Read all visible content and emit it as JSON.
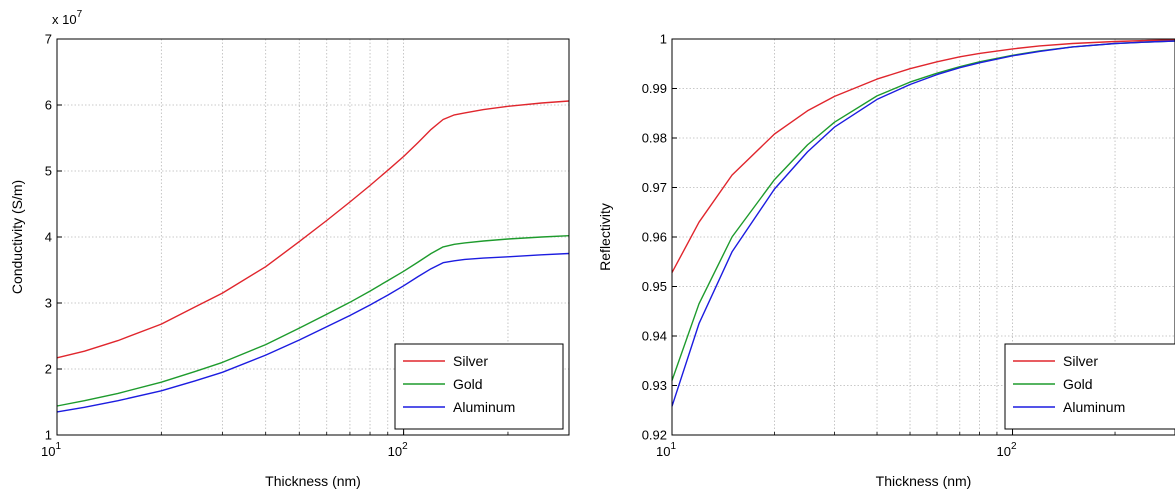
{
  "chart_data": [
    {
      "type": "line",
      "title": "",
      "xlabel": "Thickness (nm)",
      "ylabel": "Conductivity (S/m)",
      "y_multiplier_label": "x 10",
      "y_multiplier_exponent": "7",
      "xscale": "log",
      "xlim": [
        10,
        300
      ],
      "ylim": [
        1,
        7
      ],
      "x_ticks": [
        {
          "value": 10,
          "base": "10",
          "exp": "1"
        },
        {
          "value": 100,
          "base": "10",
          "exp": "2"
        }
      ],
      "y_ticks": [
        1,
        2,
        3,
        4,
        5,
        6,
        7
      ],
      "grid": true,
      "legend_position": "bottom-right",
      "x": [
        10,
        12,
        15,
        20,
        25,
        30,
        40,
        50,
        60,
        70,
        80,
        90,
        100,
        110,
        120,
        130,
        140,
        150,
        170,
        200,
        250,
        300
      ],
      "series": [
        {
          "name": "Silver",
          "color": "#e0262d",
          "values": [
            2.17,
            2.27,
            2.43,
            2.68,
            2.94,
            3.15,
            3.55,
            3.93,
            4.25,
            4.53,
            4.78,
            5.01,
            5.22,
            5.43,
            5.63,
            5.78,
            5.85,
            5.88,
            5.93,
            5.98,
            6.03,
            6.06
          ]
        },
        {
          "name": "Gold",
          "color": "#1e9b2d",
          "values": [
            1.44,
            1.52,
            1.63,
            1.8,
            1.96,
            2.1,
            2.37,
            2.62,
            2.83,
            3.01,
            3.18,
            3.34,
            3.48,
            3.62,
            3.75,
            3.85,
            3.89,
            3.91,
            3.94,
            3.97,
            4.0,
            4.02
          ]
        },
        {
          "name": "Aluminum",
          "color": "#1c1ce0",
          "values": [
            1.35,
            1.42,
            1.52,
            1.67,
            1.82,
            1.95,
            2.21,
            2.44,
            2.64,
            2.81,
            2.97,
            3.12,
            3.26,
            3.4,
            3.52,
            3.61,
            3.64,
            3.66,
            3.68,
            3.7,
            3.73,
            3.75
          ]
        }
      ]
    },
    {
      "type": "line",
      "title": "",
      "xlabel": "Thickness (nm)",
      "ylabel": "Reflectivity",
      "xscale": "log",
      "xlim": [
        10,
        300
      ],
      "ylim": [
        0.92,
        1
      ],
      "x_ticks": [
        {
          "value": 10,
          "base": "10",
          "exp": "1"
        },
        {
          "value": 100,
          "base": "10",
          "exp": "2"
        }
      ],
      "y_ticks": [
        "0.92",
        "0.93",
        "0.94",
        "0.95",
        "0.96",
        "0.97",
        "0.98",
        "0.99",
        "1"
      ],
      "grid": true,
      "legend_position": "bottom-right",
      "x": [
        10,
        12,
        15,
        20,
        25,
        30,
        40,
        50,
        60,
        70,
        80,
        100,
        120,
        150,
        200,
        250,
        300
      ],
      "series": [
        {
          "name": "Silver",
          "color": "#e0262d",
          "values": [
            0.9528,
            0.963,
            0.9725,
            0.9808,
            0.9855,
            0.9884,
            0.9919,
            0.994,
            0.9954,
            0.9964,
            0.9971,
            0.998,
            0.9986,
            0.9991,
            0.9995,
            0.9997,
            0.9998
          ]
        },
        {
          "name": "Gold",
          "color": "#1e9b2d",
          "values": [
            0.931,
            0.9465,
            0.96,
            0.9716,
            0.9786,
            0.9832,
            0.9885,
            0.9913,
            0.9931,
            0.9944,
            0.9954,
            0.9967,
            0.9976,
            0.9984,
            0.9991,
            0.9994,
            0.9996
          ]
        },
        {
          "name": "Aluminum",
          "color": "#1c1ce0",
          "values": [
            0.9258,
            0.9425,
            0.957,
            0.9697,
            0.9772,
            0.9822,
            0.9878,
            0.9908,
            0.9928,
            0.9942,
            0.9952,
            0.9966,
            0.9975,
            0.9984,
            0.9991,
            0.9994,
            0.9996
          ]
        }
      ]
    }
  ]
}
